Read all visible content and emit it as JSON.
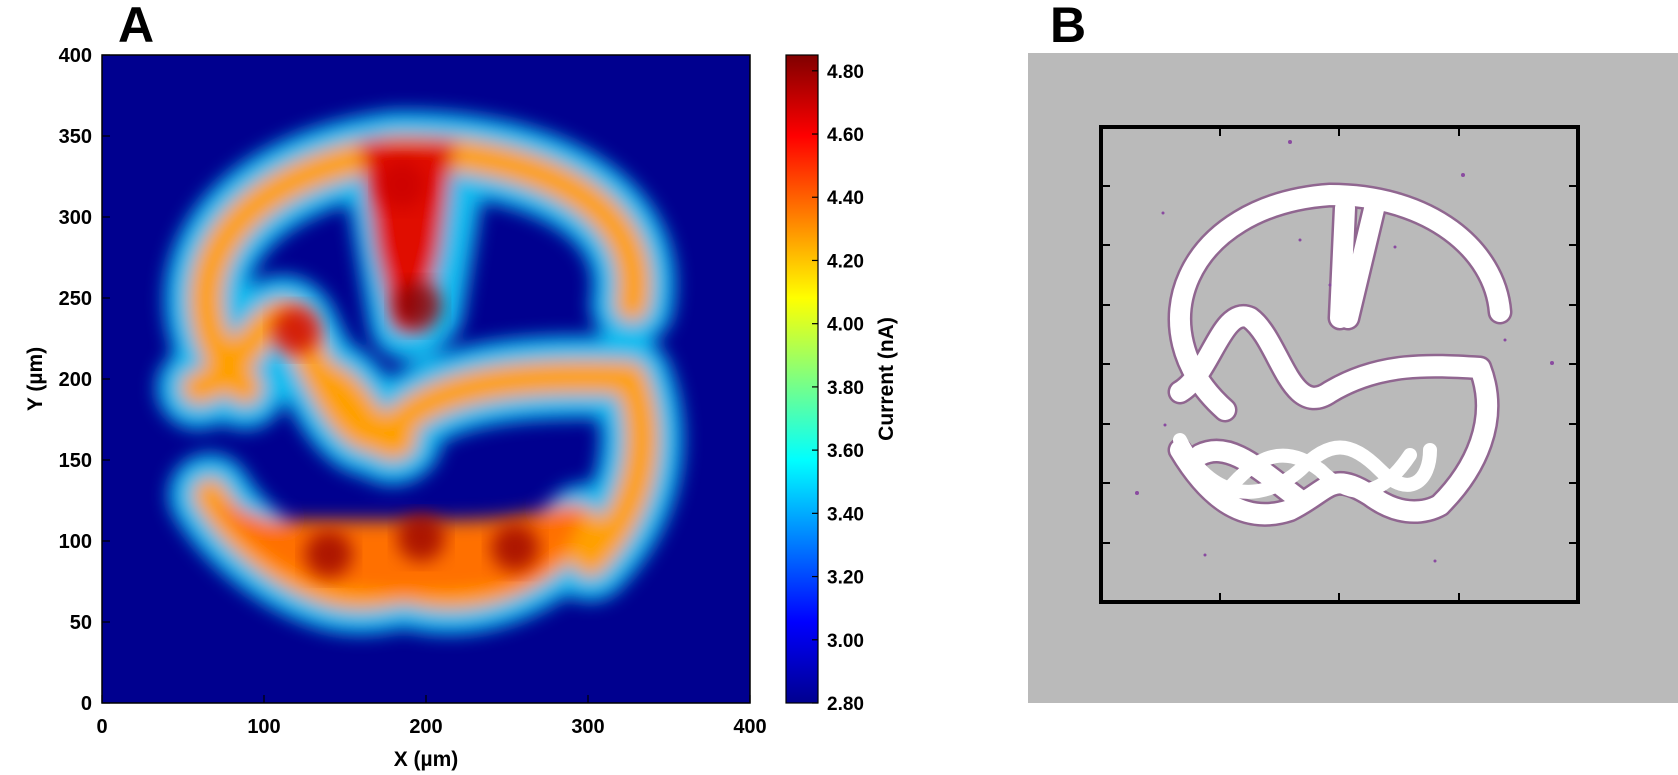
{
  "panels": {
    "a_label": "A",
    "b_label": "B"
  },
  "chart_data": {
    "type": "heatmap",
    "title": "",
    "xlabel": "X (µm)",
    "ylabel": "Y (µm)",
    "xlim": [
      0,
      400
    ],
    "ylim": [
      0,
      400
    ],
    "x_ticks": [
      "0",
      "100",
      "200",
      "300",
      "400"
    ],
    "y_ticks": [
      "0",
      "50",
      "100",
      "150",
      "200",
      "250",
      "300",
      "350",
      "400"
    ],
    "colormap": "jet",
    "colorbar": {
      "label": "Current (nA)",
      "range": [
        2.8,
        4.85
      ],
      "ticks": [
        "2.80",
        "3.00",
        "3.20",
        "3.40",
        "3.60",
        "3.80",
        "4.00",
        "4.20",
        "4.40",
        "4.60",
        "4.80"
      ]
    },
    "background_value": 2.85,
    "peak_value": 4.85,
    "hotspots": [
      {
        "x": 195,
        "y": 245,
        "value": 4.85
      },
      {
        "x": 185,
        "y": 320,
        "value": 4.7
      },
      {
        "x": 120,
        "y": 230,
        "value": 4.7
      },
      {
        "x": 140,
        "y": 92,
        "value": 4.8
      },
      {
        "x": 197,
        "y": 102,
        "value": 4.8
      },
      {
        "x": 255,
        "y": 96,
        "value": 4.8
      }
    ],
    "grid": false
  },
  "panel_b": {
    "background_color": "#bababa",
    "pattern_color": "#ffffff",
    "frame_color": "#000000"
  }
}
